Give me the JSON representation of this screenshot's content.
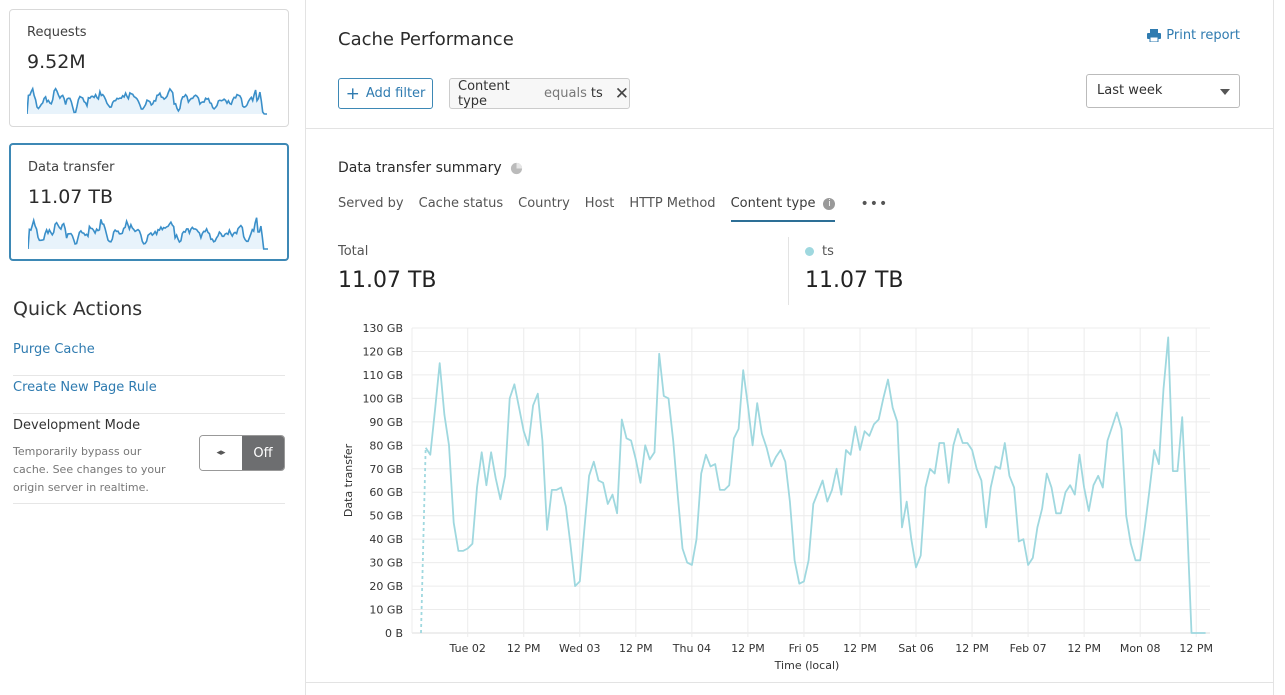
{
  "sidebar": {
    "cards": [
      {
        "label": "Requests",
        "value": "9.52M",
        "selected": false
      },
      {
        "label": "Data transfer",
        "value": "11.07 TB",
        "selected": true
      }
    ],
    "quick_actions": {
      "title": "Quick Actions",
      "links": [
        "Purge Cache",
        "Create New Page Rule"
      ],
      "dev_mode": {
        "title": "Development Mode",
        "description": "Temporarily bypass our cache. See changes to your origin server in realtime.",
        "toggle_icon": "◂▸",
        "state": "Off"
      }
    }
  },
  "header": {
    "title": "Cache Performance",
    "print_label": "Print report",
    "add_filter_label": "Add filter",
    "filter": {
      "field": "Content type",
      "operator": "equals",
      "value": "ts"
    },
    "time_range": "Last week"
  },
  "summary": {
    "title": "Data transfer summary",
    "tabs": [
      "Served by",
      "Cache status",
      "Country",
      "Host",
      "HTTP Method",
      "Content type"
    ],
    "active_tab": "Content type",
    "more": "•••",
    "total_label": "Total",
    "total_value": "11.07 TB",
    "series_label": "ts",
    "series_value": "11.07 TB"
  },
  "colors": {
    "accent": "#3d88b5",
    "link": "#2f7bb0",
    "series": "#9fd8df",
    "sparkline": "#3a8fc9"
  },
  "chart_data": {
    "type": "line",
    "xlabel": "Time (local)",
    "ylabel": "Data transfer",
    "x_start": "Feb 01 14:00",
    "x_interval": "1 hour",
    "x_ticks": [
      "Tue 02",
      "12 PM",
      "Wed 03",
      "12 PM",
      "Thu 04",
      "12 PM",
      "Fri 05",
      "12 PM",
      "Sat 06",
      "12 PM",
      "Feb 07",
      "12 PM",
      "Mon 08",
      "12 PM"
    ],
    "y_ticks": [
      "0 B",
      "10 GB",
      "20 GB",
      "30 GB",
      "40 GB",
      "50 GB",
      "60 GB",
      "70 GB",
      "80 GB",
      "90 GB",
      "100 GB",
      "110 GB",
      "120 GB",
      "130 GB"
    ],
    "ylim": [
      0,
      130
    ],
    "y_unit": "GB",
    "grid": true,
    "first_segment_dashed": true,
    "series": [
      {
        "name": "ts",
        "values": [
          0,
          79,
          76,
          95,
          115,
          93,
          80,
          47,
          35,
          35,
          36,
          38,
          62,
          77,
          63,
          77,
          66,
          57,
          67,
          100,
          106,
          96,
          86,
          80,
          97,
          102,
          82,
          44,
          61,
          61,
          62,
          54,
          38,
          20,
          22,
          45,
          67,
          73,
          65,
          64,
          55,
          59,
          51,
          91,
          83,
          82,
          74,
          64,
          80,
          74,
          77,
          119,
          101,
          100,
          82,
          58,
          36,
          30,
          29,
          40,
          68,
          76,
          71,
          72,
          61,
          61,
          63,
          83,
          87,
          112,
          97,
          80,
          98,
          85,
          79,
          71,
          75,
          78,
          73,
          56,
          31,
          21,
          22,
          31,
          55,
          60,
          65,
          56,
          61,
          70,
          59,
          78,
          76,
          88,
          78,
          86,
          84,
          89,
          91,
          100,
          108,
          96,
          90,
          45,
          56,
          40,
          28,
          33,
          62,
          70,
          68,
          81,
          81,
          64,
          80,
          87,
          81,
          81,
          78,
          70,
          65,
          45,
          62,
          71,
          70,
          81,
          67,
          62,
          39,
          40,
          29,
          32,
          45,
          53,
          68,
          62,
          51,
          51,
          60,
          63,
          59,
          76,
          62,
          52,
          63,
          67,
          62,
          82,
          88,
          94,
          87,
          50,
          38,
          31,
          31,
          45,
          61,
          78,
          72,
          104,
          126,
          69,
          69,
          92,
          49,
          0,
          0,
          0,
          0
        ]
      }
    ]
  }
}
